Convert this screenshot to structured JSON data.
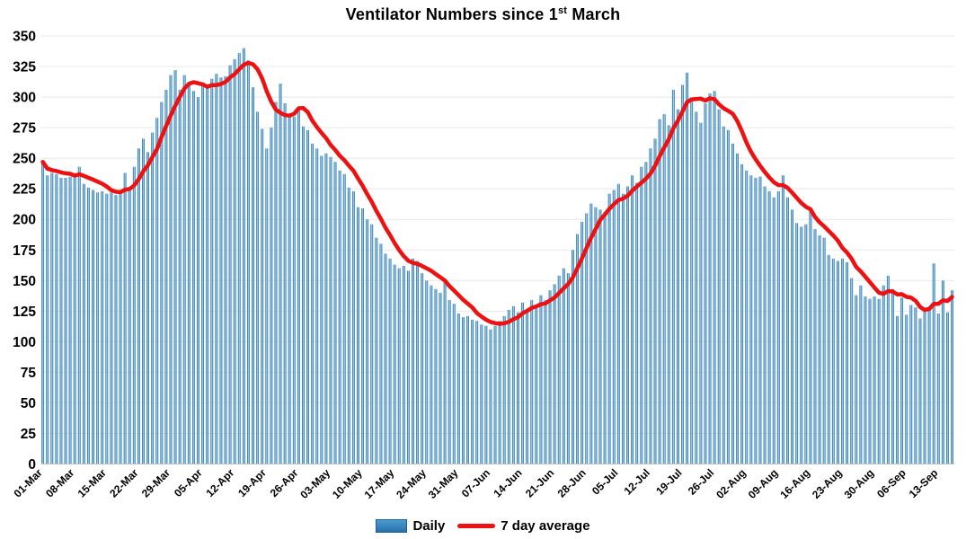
{
  "title": {
    "prefix": "Ventilator Numbers since 1",
    "sup": "st",
    "suffix": " March"
  },
  "legend": {
    "daily_label": "Daily",
    "average_label": "7 day average"
  },
  "colors": {
    "bar_edge": "#1c5f94",
    "bar_mid": "#5ea7d8",
    "bar_center": "#b9dcf2",
    "line": "#ee1111",
    "grid": "#e8e8e8",
    "axis": "#bfbfbf",
    "text": "#000000"
  },
  "chart_data": {
    "type": "bar",
    "title": "Ventilator Numbers since 1st March",
    "xlabel": "",
    "ylabel": "",
    "ylim": [
      0,
      350
    ],
    "y_ticks": [
      0,
      25,
      50,
      75,
      100,
      125,
      150,
      175,
      200,
      225,
      250,
      275,
      300,
      325,
      350
    ],
    "grid": true,
    "legend_position": "bottom",
    "tick_interval_days": 7,
    "x_tick_labels": [
      "01-Mar",
      "08-Mar",
      "15-Mar",
      "22-Mar",
      "29-Mar",
      "05-Apr",
      "12-Apr",
      "19-Apr",
      "26-Apr",
      "03-May",
      "10-May",
      "17-May",
      "24-May",
      "31-May",
      "07-Jun",
      "14-Jun",
      "21-Jun",
      "28-Jun",
      "05-Jul",
      "12-Jul",
      "19-Jul",
      "26-Jul",
      "02-Aug",
      "09-Aug",
      "16-Aug",
      "23-Aug",
      "30-Aug",
      "06-Sep",
      "13-Sep"
    ],
    "series": [
      {
        "name": "Daily",
        "type": "bar",
        "values": [
          247,
          236,
          238,
          237,
          234,
          234,
          235,
          237,
          243,
          229,
          226,
          224,
          222,
          223,
          221,
          222,
          220,
          224,
          238,
          226,
          243,
          258,
          266,
          255,
          271,
          283,
          296,
          306,
          318,
          322,
          306,
          318,
          310,
          305,
          300,
          312,
          308,
          315,
          319,
          316,
          317,
          326,
          331,
          336,
          340,
          330,
          308,
          288,
          274,
          258,
          275,
          296,
          311,
          295,
          285,
          284,
          290,
          276,
          273,
          262,
          258,
          252,
          254,
          251,
          247,
          240,
          237,
          226,
          223,
          210,
          209,
          200,
          196,
          185,
          180,
          172,
          168,
          163,
          160,
          162,
          158,
          168,
          166,
          156,
          150,
          146,
          143,
          140,
          149,
          134,
          131,
          123,
          120,
          121,
          118,
          117,
          114,
          113,
          110,
          113,
          117,
          121,
          126,
          129,
          124,
          132,
          127,
          134,
          130,
          138,
          134,
          142,
          147,
          154,
          160,
          156,
          175,
          188,
          198,
          205,
          213,
          210,
          208,
          206,
          221,
          224,
          229,
          221,
          227,
          236,
          230,
          243,
          247,
          258,
          266,
          282,
          286,
          277,
          306,
          290,
          310,
          320,
          298,
          288,
          279,
          295,
          303,
          305,
          290,
          276,
          273,
          262,
          254,
          245,
          240,
          236,
          234,
          235,
          227,
          223,
          218,
          223,
          236,
          218,
          208,
          197,
          194,
          196,
          209,
          192,
          187,
          185,
          171,
          168,
          166,
          168,
          165,
          152,
          138,
          146,
          137,
          135,
          137,
          135,
          146,
          154,
          143,
          121,
          136,
          122,
          130,
          128,
          119,
          126,
          127,
          164,
          123,
          150,
          124,
          142
        ]
      },
      {
        "name": "7 day average",
        "type": "line",
        "computed_from": "Daily",
        "definition": "trailing 7-day mean of the Daily series"
      }
    ]
  }
}
